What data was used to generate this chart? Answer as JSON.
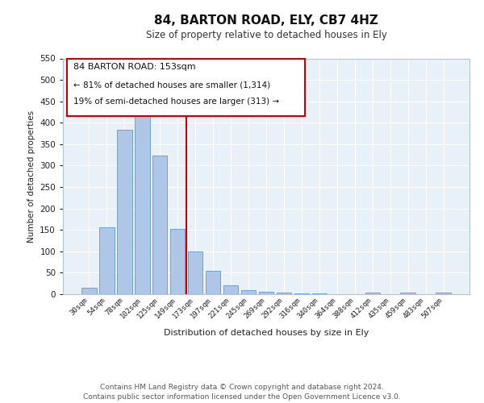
{
  "title": "84, BARTON ROAD, ELY, CB7 4HZ",
  "subtitle": "Size of property relative to detached houses in Ely",
  "xlabel": "Distribution of detached houses by size in Ely",
  "ylabel": "Number of detached properties",
  "bar_color": "#aec6e8",
  "bar_edge_color": "#5b9bd5",
  "bg_color": "#e8f0f8",
  "grid_color": "#ffffff",
  "annotation_box_color": "#cc0000",
  "vline_color": "#cc0000",
  "vline_x": 5.5,
  "annotation_text_line1": "84 BARTON ROAD: 153sqm",
  "annotation_text_line2": "← 81% of detached houses are smaller (1,314)",
  "annotation_text_line3": "19% of semi-detached houses are larger (313) →",
  "categories": [
    "30sqm",
    "54sqm",
    "78sqm",
    "102sqm",
    "125sqm",
    "149sqm",
    "173sqm",
    "197sqm",
    "221sqm",
    "245sqm",
    "269sqm",
    "292sqm",
    "316sqm",
    "340sqm",
    "364sqm",
    "388sqm",
    "412sqm",
    "435sqm",
    "459sqm",
    "483sqm",
    "507sqm"
  ],
  "values": [
    15,
    157,
    383,
    418,
    323,
    153,
    100,
    55,
    20,
    10,
    5,
    3,
    2,
    1,
    0,
    0,
    3,
    0,
    3,
    0,
    3
  ],
  "ylim": [
    0,
    550
  ],
  "yticks": [
    0,
    50,
    100,
    150,
    200,
    250,
    300,
    350,
    400,
    450,
    500,
    550
  ],
  "footer_line1": "Contains HM Land Registry data © Crown copyright and database right 2024.",
  "footer_line2": "Contains public sector information licensed under the Open Government Licence v3.0."
}
